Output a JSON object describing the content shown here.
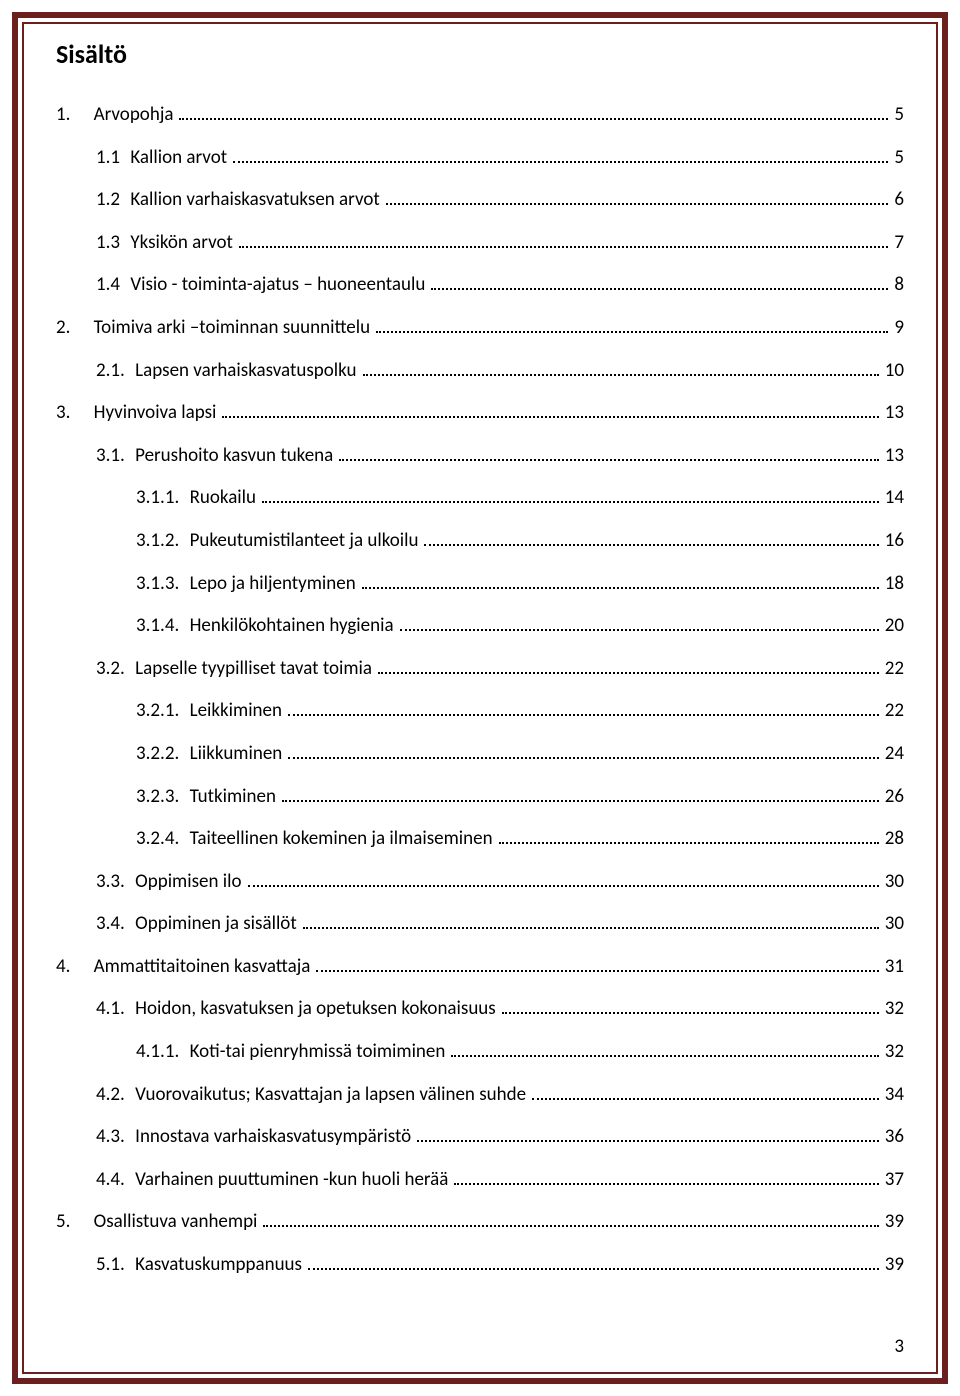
{
  "colors": {
    "border": "#6b1f1f",
    "text": "#000000",
    "background": "#ffffff"
  },
  "typography": {
    "font_family": "Calibri, 'Segoe UI', Arial, sans-serif",
    "title_fontsize_pt": 14,
    "body_fontsize_pt": 11,
    "title_weight": "bold"
  },
  "page_number": "3",
  "title": "Sisältö",
  "toc": [
    {
      "indent": 0,
      "num": "1.",
      "label": "Arvopohja",
      "page": "5"
    },
    {
      "indent": 1,
      "num": "1.1",
      "label": "Kallion arvot",
      "page": "5"
    },
    {
      "indent": 1,
      "num": "1.2",
      "label": "Kallion varhaiskasvatuksen arvot",
      "page": "6"
    },
    {
      "indent": 1,
      "num": "1.3",
      "label": "Yksikön arvot",
      "page": "7"
    },
    {
      "indent": 1,
      "num": "1.4",
      "label": "Visio - toiminta-ajatus – huoneentaulu",
      "page": "8"
    },
    {
      "indent": 0,
      "num": "2.",
      "label": "Toimiva arki –toiminnan suunnittelu",
      "page": "9"
    },
    {
      "indent": 1,
      "num": "2.1.",
      "label": "Lapsen varhaiskasvatuspolku",
      "page": "10"
    },
    {
      "indent": 0,
      "num": "3.",
      "label": "Hyvinvoiva lapsi",
      "page": "13"
    },
    {
      "indent": 1,
      "num": "3.1.",
      "label": "Perushoito kasvun tukena",
      "page": "13"
    },
    {
      "indent": 2,
      "num": "3.1.1.",
      "label": "Ruokailu",
      "page": "14"
    },
    {
      "indent": 2,
      "num": "3.1.2.",
      "label": "Pukeutumistilanteet ja ulkoilu",
      "page": "16"
    },
    {
      "indent": 2,
      "num": "3.1.3.",
      "label": "Lepo ja hiljentyminen",
      "page": "18"
    },
    {
      "indent": 2,
      "num": "3.1.4.",
      "label": "Henkilökohtainen hygienia",
      "page": "20"
    },
    {
      "indent": 1,
      "num": "3.2.",
      "label": "Lapselle tyypilliset tavat toimia",
      "page": "22"
    },
    {
      "indent": 2,
      "num": "3.2.1.",
      "label": "Leikkiminen",
      "page": "22"
    },
    {
      "indent": 2,
      "num": "3.2.2.",
      "label": "Liikkuminen",
      "page": "24"
    },
    {
      "indent": 2,
      "num": "3.2.3.",
      "label": "Tutkiminen",
      "page": "26"
    },
    {
      "indent": 2,
      "num": "3.2.4.",
      "label": "Taiteellinen kokeminen ja ilmaiseminen",
      "page": "28"
    },
    {
      "indent": 1,
      "num": "3.3.",
      "label": "Oppimisen ilo",
      "page": "30"
    },
    {
      "indent": 1,
      "num": "3.4.",
      "label": "Oppiminen ja sisällöt",
      "page": "30"
    },
    {
      "indent": 0,
      "num": "4.",
      "label": "Ammattitaitoinen kasvattaja",
      "page": "31"
    },
    {
      "indent": 1,
      "num": "4.1.",
      "label": "Hoidon, kasvatuksen ja opetuksen kokonaisuus",
      "page": "32"
    },
    {
      "indent": 2,
      "num": "4.1.1.",
      "label": "Koti-tai pienryhmissä toimiminen",
      "page": "32"
    },
    {
      "indent": 1,
      "num": "4.2.",
      "label": "Vuorovaikutus; Kasvattajan ja lapsen välinen suhde",
      "page": "34"
    },
    {
      "indent": 1,
      "num": "4.3.",
      "label": "Innostava varhaiskasvatusympäristö",
      "page": "36"
    },
    {
      "indent": 1,
      "num": "4.4.",
      "label": "Varhainen puuttuminen -kun huoli herää",
      "page": "37"
    },
    {
      "indent": 0,
      "num": "5.",
      "label": "Osallistuva vanhempi",
      "page": "39"
    },
    {
      "indent": 1,
      "num": "5.1.",
      "label": "Kasvatuskumppanuus",
      "page": "39"
    }
  ]
}
